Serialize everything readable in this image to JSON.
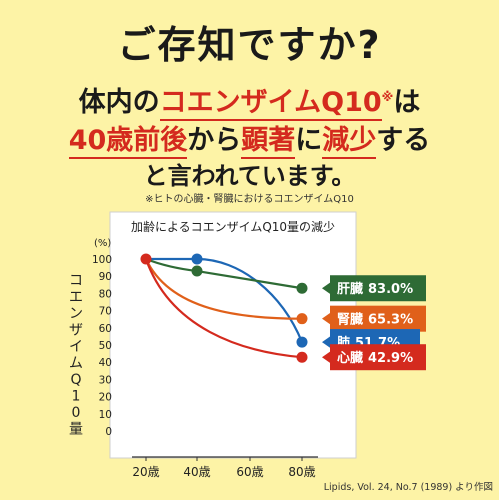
{
  "header": {
    "headline": "ご存知ですか?",
    "line1_a": "体内の",
    "line1_b": "コエンザイムQ10",
    "line1_mark": "※",
    "line1_c": "は",
    "line2_a": "40歳前後",
    "line2_b": "から",
    "line2_c": "顕著",
    "line2_d": "に",
    "line2_e": "減少",
    "line2_f": "する",
    "line3": "と言われています。",
    "footnote": "※ヒトの心臓・腎臓におけるコエンザイムQ10"
  },
  "credit": "Lipids, Vol. 24, No.7 (1989) より作図",
  "chart_data": {
    "type": "line",
    "title": "加齢によるコエンザイムQ10量の減少",
    "ylabel": "コエンザイムQ10量",
    "yunit": "(%)",
    "x": [
      "20歳",
      "40歳",
      "60歳",
      "80歳"
    ],
    "ylim": [
      0,
      100
    ],
    "yticks": [
      0,
      10,
      20,
      30,
      40,
      50,
      60,
      70,
      80,
      90,
      100
    ],
    "series": [
      {
        "name": "肝臓",
        "value_label": "83.0%",
        "color": "#2e6b35",
        "values": [
          100,
          93,
          null,
          83.0
        ]
      },
      {
        "name": "腎臓",
        "value_label": "65.3%",
        "color": "#e0601a",
        "values": [
          100,
          null,
          null,
          65.3
        ]
      },
      {
        "name": "肺",
        "value_label": "51.7%",
        "color": "#1d67b5",
        "values": [
          100,
          100,
          null,
          51.7
        ]
      },
      {
        "name": "心臓",
        "value_label": "42.9%",
        "color": "#d42a1e",
        "values": [
          100,
          null,
          null,
          42.9
        ]
      }
    ]
  }
}
